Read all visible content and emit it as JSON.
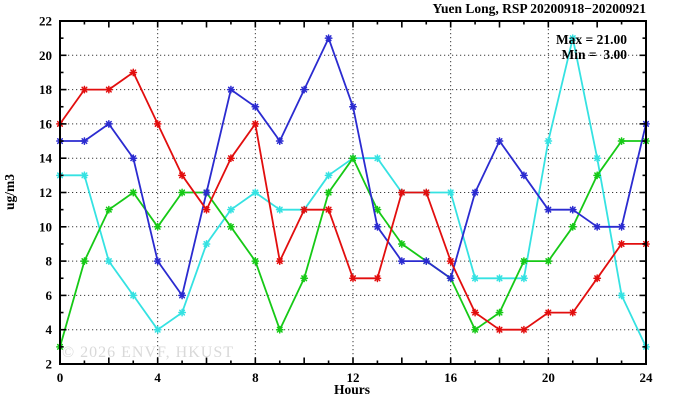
{
  "chart": {
    "title": "Yuen Long, RSP 20200918−20200921",
    "legend": {
      "max_label": "Max = 21.00",
      "min_label": "Min =  3.00"
    },
    "xlabel": "Hours",
    "ylabel": "ug/m3",
    "watermark": "© 2026 ENVF, HKUST"
  },
  "chart_data": {
    "type": "line",
    "title": "Yuen Long, RSP 20200918-20200921",
    "xlabel": "Hours",
    "ylabel": "ug/m3",
    "xlim": [
      0,
      24
    ],
    "ylim": [
      2,
      22
    ],
    "x": [
      0,
      1,
      2,
      3,
      4,
      5,
      6,
      7,
      8,
      9,
      10,
      11,
      12,
      13,
      14,
      15,
      16,
      17,
      18,
      19,
      20,
      21,
      22,
      23,
      24
    ],
    "series": [
      {
        "name": "series-cyan",
        "color": "#35e2e2",
        "values": [
          13,
          13,
          8,
          6,
          4,
          5,
          9,
          11,
          12,
          11,
          11,
          13,
          14,
          14,
          12,
          12,
          12,
          7,
          7,
          7,
          15,
          21,
          14,
          6,
          3
        ]
      },
      {
        "name": "series-green",
        "color": "#16c916",
        "values": [
          3,
          8,
          11,
          12,
          10,
          12,
          12,
          10,
          8,
          4,
          7,
          12,
          14,
          11,
          9,
          8,
          7,
          4,
          5,
          8,
          8,
          10,
          13,
          15,
          15
        ]
      },
      {
        "name": "series-blue",
        "color": "#2b2bd0",
        "values": [
          15,
          15,
          16,
          14,
          8,
          6,
          12,
          18,
          17,
          15,
          18,
          21,
          17,
          10,
          8,
          8,
          7,
          12,
          15,
          13,
          11,
          11,
          10,
          10,
          16
        ]
      },
      {
        "name": "series-red",
        "color": "#e20e0e",
        "values": [
          16,
          18,
          18,
          19,
          16,
          13,
          11,
          14,
          16,
          8,
          11,
          11,
          7,
          7,
          12,
          12,
          8,
          5,
          4,
          4,
          5,
          5,
          7,
          9,
          9
        ]
      }
    ],
    "stats": {
      "max": 21.0,
      "min": 3.0
    },
    "xtick_labels": [
      "0",
      "4",
      "8",
      "12",
      "16",
      "20",
      "24"
    ],
    "xtick_values": [
      0,
      4,
      8,
      12,
      16,
      20,
      24
    ],
    "ytick_labels": [
      "2",
      "4",
      "6",
      "8",
      "10",
      "12",
      "14",
      "16",
      "18",
      "20",
      "22"
    ],
    "ytick_values": [
      2,
      4,
      6,
      8,
      10,
      12,
      14,
      16,
      18,
      20,
      22
    ],
    "x_major_step": 2,
    "x_minor_step": 1,
    "y_minor_step": 1,
    "grid": true,
    "grid_style": "dotted",
    "legend_position": "top-right-inside",
    "marker": "star"
  }
}
